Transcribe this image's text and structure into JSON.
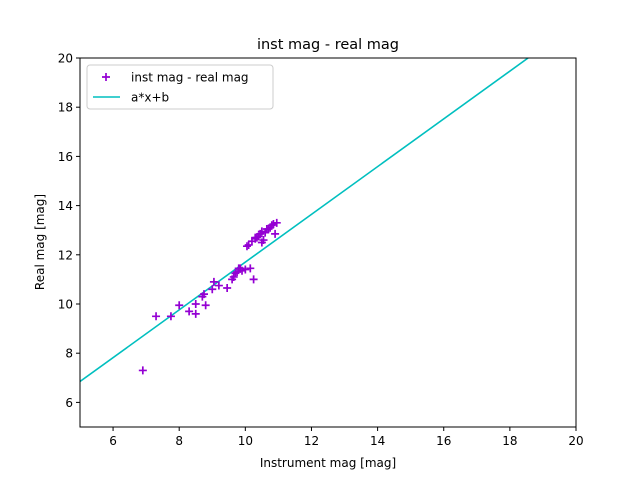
{
  "chart_data": {
    "type": "scatter",
    "title": "inst mag - real mag",
    "xlabel": "Instrument mag [mag]",
    "ylabel": "Real mag [mag]",
    "xlim": [
      5,
      20
    ],
    "ylim": [
      5,
      20
    ],
    "xticks": [
      6,
      8,
      10,
      12,
      14,
      16,
      18,
      20
    ],
    "yticks": [
      6,
      8,
      10,
      12,
      14,
      16,
      18,
      20
    ],
    "grid": false,
    "legend_position": "upper-left",
    "series": [
      {
        "name": "inst mag - real mag",
        "kind": "scatter",
        "marker": "plus",
        "color": "#9400d3",
        "points": [
          [
            6.9,
            7.3
          ],
          [
            7.3,
            9.5
          ],
          [
            7.75,
            9.5
          ],
          [
            8.0,
            9.95
          ],
          [
            8.3,
            9.7
          ],
          [
            8.5,
            9.6
          ],
          [
            8.5,
            10.0
          ],
          [
            8.7,
            10.3
          ],
          [
            8.75,
            10.4
          ],
          [
            8.8,
            9.95
          ],
          [
            9.0,
            10.6
          ],
          [
            9.05,
            10.9
          ],
          [
            9.2,
            10.75
          ],
          [
            9.45,
            10.65
          ],
          [
            9.6,
            11.0
          ],
          [
            9.65,
            11.1
          ],
          [
            9.7,
            11.25
          ],
          [
            9.75,
            11.3
          ],
          [
            9.8,
            11.45
          ],
          [
            9.9,
            11.35
          ],
          [
            10.0,
            11.4
          ],
          [
            10.05,
            12.35
          ],
          [
            10.1,
            12.4
          ],
          [
            10.15,
            11.45
          ],
          [
            10.2,
            12.55
          ],
          [
            10.25,
            11.0
          ],
          [
            10.3,
            12.65
          ],
          [
            10.35,
            12.7
          ],
          [
            10.4,
            12.75
          ],
          [
            10.45,
            12.85
          ],
          [
            10.5,
            12.95
          ],
          [
            10.5,
            12.5
          ],
          [
            10.55,
            12.6
          ],
          [
            10.6,
            12.9
          ],
          [
            10.7,
            13.05
          ],
          [
            10.75,
            13.1
          ],
          [
            10.8,
            13.2
          ],
          [
            10.85,
            13.25
          ],
          [
            10.9,
            12.85
          ],
          [
            10.95,
            13.3
          ],
          [
            9.85,
            11.45
          ],
          [
            10.3,
            12.7
          ],
          [
            10.65,
            13.05
          ]
        ]
      },
      {
        "name": "a*x+b",
        "kind": "line",
        "color": "#00bfbf",
        "points": [
          [
            5.0,
            6.85
          ],
          [
            18.55,
            20.0
          ]
        ]
      }
    ]
  }
}
